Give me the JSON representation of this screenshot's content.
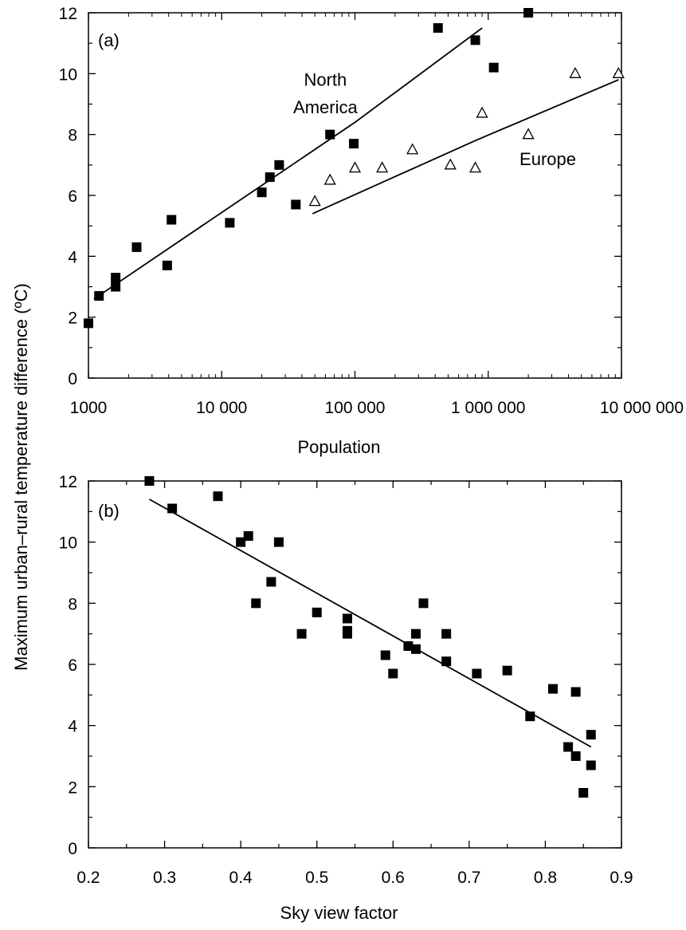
{
  "figure": {
    "shared_ylabel": "Maximum urban–rural temperature difference (ºC)"
  },
  "chart_data": [
    {
      "panel": "(a)",
      "type": "scatter",
      "xlabel": "Population",
      "x_scale": "log",
      "xlim": [
        1000,
        10000000
      ],
      "ylim": [
        0,
        12
      ],
      "x_ticks": [
        1000,
        10000,
        100000,
        1000000,
        10000000
      ],
      "x_tick_labels": [
        "1000",
        "10 000",
        "100 000",
        "1 000 000",
        "10 000 000"
      ],
      "y_ticks": [
        0,
        2,
        4,
        6,
        8,
        10,
        12
      ],
      "y_tick_labels": [
        "0",
        "2",
        "4",
        "6",
        "8",
        "10",
        "12"
      ],
      "grid": false,
      "series": [
        {
          "name": "North America",
          "marker": "filled-square",
          "points": [
            {
              "x": 1000,
              "y": 1.8
            },
            {
              "x": 1200,
              "y": 2.7
            },
            {
              "x": 1600,
              "y": 3.0
            },
            {
              "x": 1600,
              "y": 3.3
            },
            {
              "x": 2300,
              "y": 4.3
            },
            {
              "x": 3900,
              "y": 3.7
            },
            {
              "x": 4200,
              "y": 5.2
            },
            {
              "x": 11500,
              "y": 5.1
            },
            {
              "x": 20000,
              "y": 6.1
            },
            {
              "x": 23000,
              "y": 6.6
            },
            {
              "x": 27000,
              "y": 7.0
            },
            {
              "x": 36000,
              "y": 5.7
            },
            {
              "x": 65000,
              "y": 8.0
            },
            {
              "x": 98000,
              "y": 7.7
            },
            {
              "x": 420000,
              "y": 11.5
            },
            {
              "x": 800000,
              "y": 11.1
            },
            {
              "x": 1100000,
              "y": 10.2
            },
            {
              "x": 2000000,
              "y": 12.0
            }
          ],
          "fit": [
            {
              "x": 1100,
              "y": 2.6
            },
            {
              "x": 100000,
              "y": 8.4
            },
            {
              "x": 900000,
              "y": 11.5
            }
          ]
        },
        {
          "name": "Europe",
          "marker": "open-triangle",
          "points": [
            {
              "x": 50000,
              "y": 5.8
            },
            {
              "x": 65000,
              "y": 6.5
            },
            {
              "x": 100000,
              "y": 6.9
            },
            {
              "x": 160000,
              "y": 6.9
            },
            {
              "x": 270000,
              "y": 7.5
            },
            {
              "x": 520000,
              "y": 7.0
            },
            {
              "x": 800000,
              "y": 6.9
            },
            {
              "x": 900000,
              "y": 8.7
            },
            {
              "x": 2000000,
              "y": 8.0
            },
            {
              "x": 4500000,
              "y": 10.0
            },
            {
              "x": 9500000,
              "y": 10.0
            }
          ],
          "fit": [
            {
              "x": 48000,
              "y": 5.4
            },
            {
              "x": 800000,
              "y": 7.8
            },
            {
              "x": 9500000,
              "y": 9.8
            }
          ]
        }
      ],
      "annotations": [
        {
          "text": "North",
          "x": 60000,
          "y": 9.6
        },
        {
          "text": "America",
          "x": 60000,
          "y": 8.7
        },
        {
          "text": "Europe",
          "x": 2800000,
          "y": 7.0
        }
      ]
    },
    {
      "panel": "(b)",
      "type": "scatter",
      "xlabel": "Sky view factor",
      "x_scale": "linear",
      "xlim": [
        0.2,
        0.9
      ],
      "ylim": [
        0,
        12
      ],
      "x_ticks": [
        0.2,
        0.3,
        0.4,
        0.5,
        0.6,
        0.7,
        0.8,
        0.9
      ],
      "x_tick_labels": [
        "0.2",
        "0.3",
        "0.4",
        "0.5",
        "0.6",
        "0.7",
        "0.8",
        "0.9"
      ],
      "y_ticks": [
        0,
        2,
        4,
        6,
        8,
        10,
        12
      ],
      "y_tick_labels": [
        "0",
        "2",
        "4",
        "6",
        "8",
        "10",
        "12"
      ],
      "grid": false,
      "series": [
        {
          "marker": "filled-square",
          "points": [
            {
              "x": 0.28,
              "y": 12.0
            },
            {
              "x": 0.31,
              "y": 11.1
            },
            {
              "x": 0.37,
              "y": 11.5
            },
            {
              "x": 0.4,
              "y": 10.0
            },
            {
              "x": 0.41,
              "y": 10.2
            },
            {
              "x": 0.45,
              "y": 10.0
            },
            {
              "x": 0.42,
              "y": 8.0
            },
            {
              "x": 0.44,
              "y": 8.7
            },
            {
              "x": 0.48,
              "y": 7.0
            },
            {
              "x": 0.5,
              "y": 7.7
            },
            {
              "x": 0.54,
              "y": 7.5
            },
            {
              "x": 0.54,
              "y": 7.1
            },
            {
              "x": 0.54,
              "y": 7.0
            },
            {
              "x": 0.59,
              "y": 6.3
            },
            {
              "x": 0.6,
              "y": 5.7
            },
            {
              "x": 0.62,
              "y": 6.6
            },
            {
              "x": 0.63,
              "y": 7.0
            },
            {
              "x": 0.63,
              "y": 6.5
            },
            {
              "x": 0.64,
              "y": 8.0
            },
            {
              "x": 0.67,
              "y": 7.0
            },
            {
              "x": 0.67,
              "y": 6.1
            },
            {
              "x": 0.71,
              "y": 5.7
            },
            {
              "x": 0.75,
              "y": 5.8
            },
            {
              "x": 0.78,
              "y": 4.3
            },
            {
              "x": 0.81,
              "y": 5.2
            },
            {
              "x": 0.84,
              "y": 5.1
            },
            {
              "x": 0.83,
              "y": 3.3
            },
            {
              "x": 0.84,
              "y": 3.0
            },
            {
              "x": 0.86,
              "y": 3.7
            },
            {
              "x": 0.86,
              "y": 2.7
            },
            {
              "x": 0.85,
              "y": 1.8
            }
          ],
          "fit": [
            {
              "x": 0.28,
              "y": 11.4
            },
            {
              "x": 0.86,
              "y": 3.3
            }
          ]
        }
      ]
    }
  ]
}
